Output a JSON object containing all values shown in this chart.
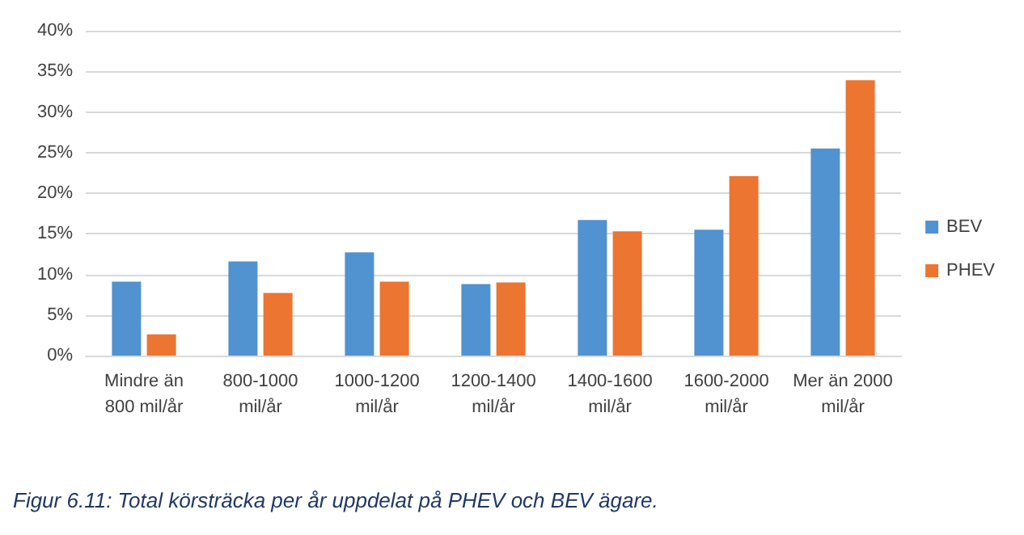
{
  "chart_data": {
    "type": "bar",
    "categories": [
      "Mindre än\n800 mil/år",
      "800-1000\nmil/år",
      "1000-1200\nmil/år",
      "1200-1400\nmil/år",
      "1400-1600\nmil/år",
      "1600-2000\nmil/år",
      "Mer än 2000\nmil/år"
    ],
    "series": [
      {
        "name": "BEV",
        "color": "#5192d0",
        "values": [
          9.1,
          11.6,
          12.7,
          8.8,
          16.7,
          15.5,
          25.5
        ]
      },
      {
        "name": "PHEV",
        "color": "#ec7531",
        "values": [
          2.6,
          7.7,
          9.1,
          9.0,
          15.3,
          22.1,
          33.9
        ]
      }
    ],
    "ylim": [
      0,
      40
    ],
    "yticks": [
      {
        "value": 0,
        "label": "0%"
      },
      {
        "value": 5,
        "label": "5%"
      },
      {
        "value": 10,
        "label": "10%"
      },
      {
        "value": 15,
        "label": "15%"
      },
      {
        "value": 20,
        "label": "20%"
      },
      {
        "value": 25,
        "label": "25%"
      },
      {
        "value": 30,
        "label": "30%"
      },
      {
        "value": 35,
        "label": "35%"
      },
      {
        "value": 40,
        "label": "40%"
      }
    ],
    "grid": "y",
    "legend": "right",
    "annotations": [
      "Figur 6.11: Total körsträcka per år uppdelat på PHEV och BEV ägare."
    ]
  }
}
